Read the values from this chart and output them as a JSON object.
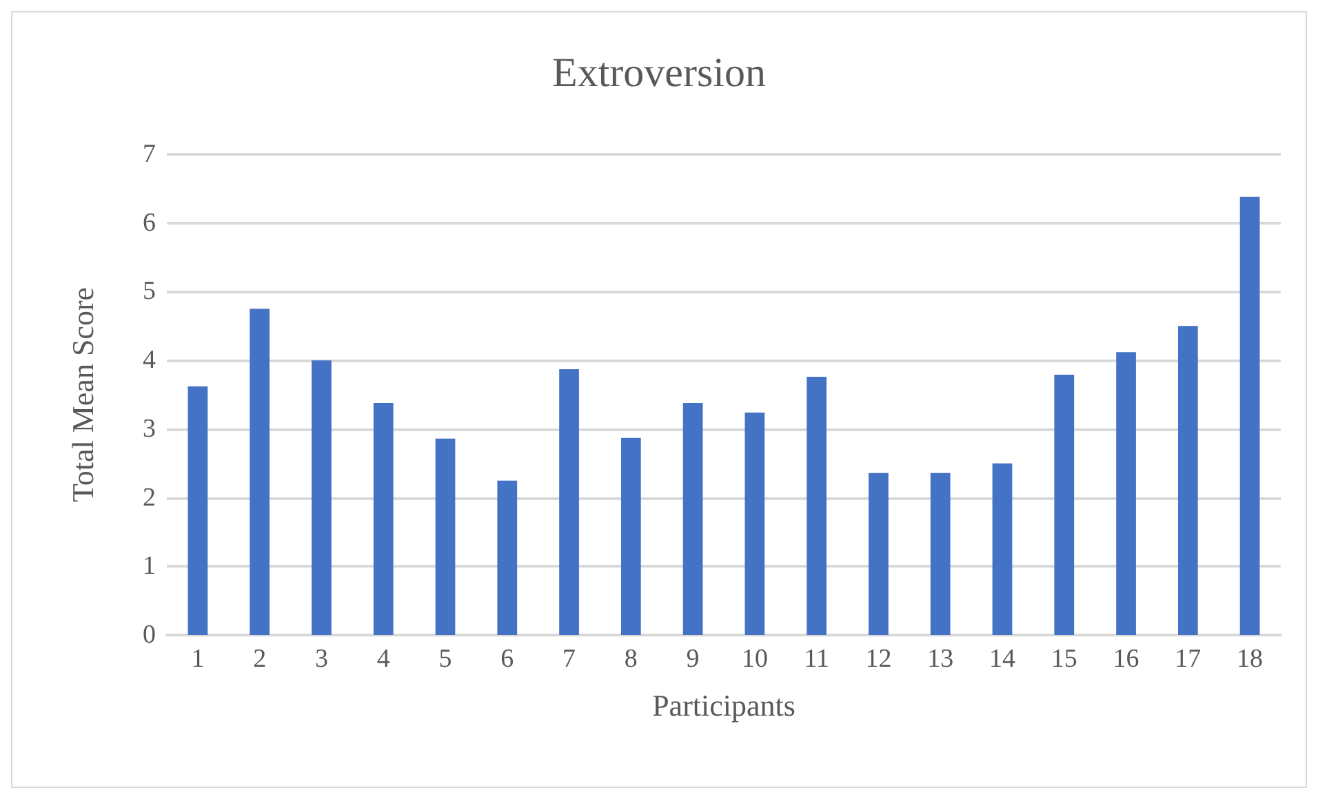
{
  "chart_data": {
    "type": "bar",
    "title": "Extroversion",
    "xlabel": "Participants",
    "ylabel": "Total Mean Score",
    "categories": [
      "1",
      "2",
      "3",
      "4",
      "5",
      "6",
      "7",
      "8",
      "9",
      "10",
      "11",
      "12",
      "13",
      "14",
      "15",
      "16",
      "17",
      "18"
    ],
    "values": [
      3.62,
      4.75,
      4.0,
      3.38,
      2.86,
      2.25,
      3.87,
      2.87,
      3.38,
      3.24,
      3.76,
      2.36,
      2.36,
      2.5,
      3.79,
      4.12,
      4.5,
      6.38
    ],
    "color": "#4472c4",
    "ylim": [
      0,
      7
    ],
    "yticks": [
      0,
      1,
      2,
      3,
      4,
      5,
      6,
      7
    ],
    "grid": "y"
  }
}
